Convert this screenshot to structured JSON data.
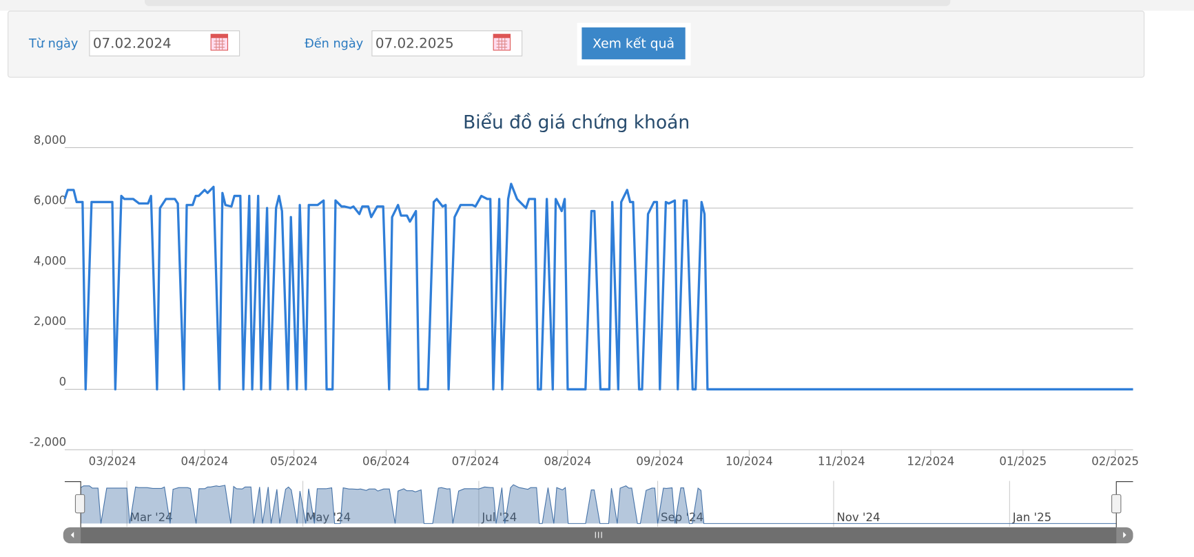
{
  "form": {
    "from_label": "Từ ngày",
    "from_value": "07.02.2024",
    "to_label": "Đến ngày",
    "to_value": "07.02.2025",
    "button": "Xem kết quả"
  },
  "chart_data": {
    "type": "line",
    "title": "Biểu đồ giá chứng khoán",
    "color": "#2f7ed8",
    "grid": true,
    "x": [
      0,
      1,
      3,
      4,
      6,
      7,
      9,
      16,
      17,
      19,
      20,
      22,
      23,
      25,
      28,
      29,
      31,
      32,
      34,
      37,
      38,
      40,
      41,
      43,
      44,
      45,
      47,
      48,
      50,
      52,
      53,
      54,
      56,
      57,
      59,
      60,
      62,
      63,
      65,
      66,
      68,
      69,
      71,
      72,
      73,
      75,
      76,
      78,
      79,
      81,
      82,
      85,
      87,
      88,
      90,
      91,
      93,
      94,
      96,
      97,
      99,
      100,
      102,
      103,
      105,
      107,
      109,
      110,
      112,
      113,
      115,
      116,
      118,
      119,
      122,
      124,
      125,
      127,
      128,
      129,
      131,
      133,
      135,
      137,
      138,
      140,
      142,
      143,
      144,
      146,
      147,
      149,
      150,
      152,
      153,
      155,
      156,
      158,
      159,
      160,
      162,
      164,
      165,
      167,
      168,
      169,
      175,
      177,
      178,
      180,
      183,
      184,
      186,
      187,
      189,
      190,
      191,
      193,
      194,
      196,
      198,
      199,
      200,
      202,
      203,
      205,
      206,
      208,
      209,
      211,
      212,
      214,
      215,
      216,
      359
    ],
    "values": [
      6300,
      6600,
      6600,
      6200,
      6200,
      0,
      6200,
      6200,
      0,
      6400,
      6300,
      6300,
      6300,
      6150,
      6150,
      6400,
      0,
      6000,
      6300,
      6300,
      6150,
      0,
      6100,
      6100,
      6400,
      6400,
      6600,
      6500,
      6700,
      0,
      6500,
      6100,
      6050,
      6400,
      6400,
      0,
      6400,
      0,
      6400,
      0,
      6000,
      0,
      6000,
      6400,
      5900,
      0,
      5700,
      0,
      6100,
      0,
      6100,
      6100,
      6250,
      0,
      0,
      6250,
      6050,
      6050,
      6000,
      6050,
      5800,
      6050,
      6050,
      5700,
      6050,
      6050,
      0,
      5700,
      6100,
      5750,
      5750,
      5550,
      5900,
      0,
      0,
      6200,
      6300,
      6050,
      6100,
      0,
      5700,
      6100,
      6100,
      6100,
      6050,
      6400,
      6300,
      6300,
      0,
      6300,
      0,
      6300,
      6800,
      6300,
      6200,
      6000,
      6300,
      6300,
      0,
      0,
      6300,
      0,
      6300,
      5900,
      6300,
      0,
      0,
      5900,
      5900,
      0,
      0,
      6200,
      0,
      6200,
      6600,
      6200,
      6200,
      0,
      0,
      5800,
      6200,
      6200,
      0,
      6200,
      6150,
      6250,
      0,
      6250,
      6250,
      0,
      0,
      6200,
      5800,
      0,
      0
    ],
    "xlim": [
      0,
      359
    ],
    "xticks": [
      {
        "value": 16,
        "label": "03/2024"
      },
      {
        "value": 47,
        "label": "04/2024"
      },
      {
        "value": 77,
        "label": "05/2024"
      },
      {
        "value": 108,
        "label": "06/2024"
      },
      {
        "value": 138,
        "label": "07/2024"
      },
      {
        "value": 169,
        "label": "08/2024"
      },
      {
        "value": 200,
        "label": "09/2024"
      },
      {
        "value": 230,
        "label": "10/2024"
      },
      {
        "value": 261,
        "label": "11/2024"
      },
      {
        "value": 291,
        "label": "12/2024"
      },
      {
        "value": 322,
        "label": "01/2025"
      },
      {
        "value": 353,
        "label": "02/2025"
      }
    ],
    "ylim": [
      -2000,
      8000
    ],
    "yticks": [
      {
        "value": -2000,
        "label": "-2,000"
      },
      0,
      {
        "value": 2000,
        "label": "2,000"
      },
      {
        "value": 4000,
        "label": "4,000"
      },
      {
        "value": 6000,
        "label": "6,000"
      },
      {
        "value": 8000,
        "label": "8,000"
      }
    ],
    "navigator_ticks": [
      {
        "value": 16,
        "label": "Mar '24"
      },
      {
        "value": 77,
        "label": "May '24"
      },
      {
        "value": 138,
        "label": "Jul '24"
      },
      {
        "value": 200,
        "label": "Sep '24"
      },
      {
        "value": 261,
        "label": "Nov '24"
      },
      {
        "value": 322,
        "label": "Jan '25"
      }
    ]
  }
}
